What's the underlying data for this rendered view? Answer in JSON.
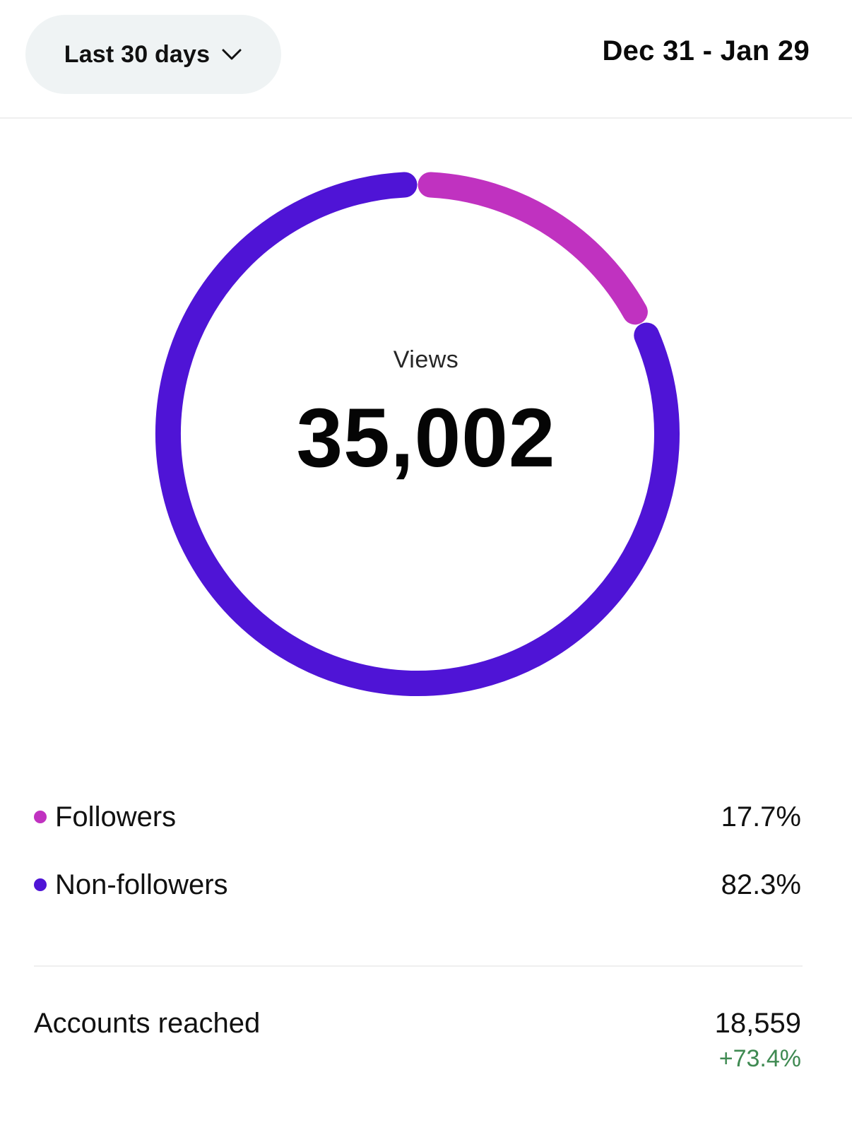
{
  "header": {
    "range_label": "Last 30 days",
    "date_range": "Dec 31 - Jan 29"
  },
  "summary": {
    "metric_label": "Views",
    "metric_value": "35,002"
  },
  "breakdown": [
    {
      "label": "Followers",
      "value_text": "17.7%",
      "percent": 17.7,
      "color": "#c032c0"
    },
    {
      "label": "Non-followers",
      "value_text": "82.3%",
      "percent": 82.3,
      "color": "#4f14d6"
    }
  ],
  "accounts": {
    "label": "Accounts reached",
    "value": "18,559",
    "change": "+73.4%",
    "change_color": "#3f8a52"
  },
  "icons": {
    "dropdown": "chevron-down-icon"
  }
}
